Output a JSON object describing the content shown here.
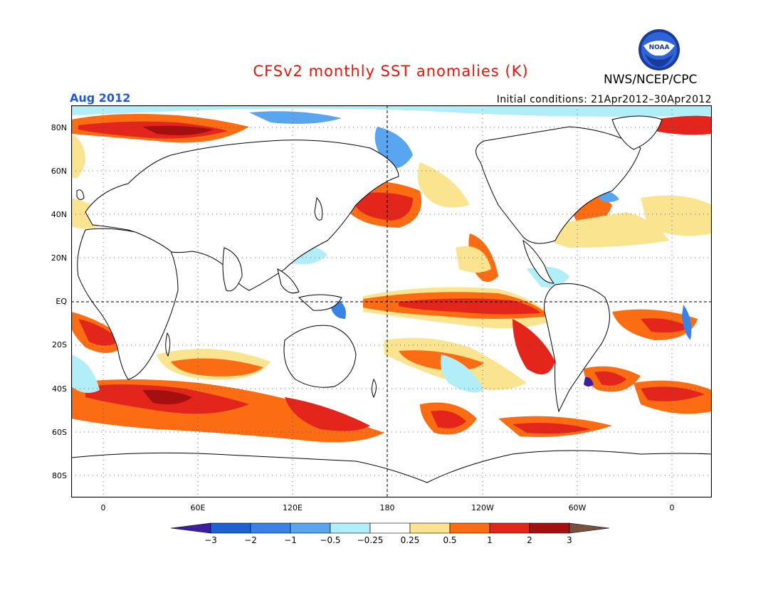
{
  "title": "CFSv2 monthly SST anomalies (K)",
  "agency": "NWS/NCEP/CPC",
  "logo_text": "NOAA",
  "valid_month": "Aug 2012",
  "initial_conditions": "Initial conditions: 21Apr2012–30Apr2012",
  "lat_labels": [
    "80N",
    "60N",
    "40N",
    "20N",
    "EQ",
    "20S",
    "40S",
    "60S",
    "80S"
  ],
  "lon_labels": [
    "0",
    "60E",
    "120E",
    "180",
    "120W",
    "60W",
    "0"
  ],
  "colorbar": {
    "labels": [
      "−3",
      "−2",
      "−1",
      "−0.5",
      "−0.25",
      "0.25",
      "0.5",
      "1",
      "2",
      "3"
    ],
    "colors": [
      "#3b1fa0",
      "#1c62d4",
      "#3a82e6",
      "#5aa5f0",
      "#b2eef8",
      "#ffffff",
      "#fbe490",
      "#fc6c12",
      "#e4251c",
      "#a50f0f",
      "#7a5040"
    ]
  },
  "colors": {
    "warm_strong": "#a50f0f",
    "warm": "#e4251c",
    "warm_mid": "#fc6c12",
    "warm_weak": "#fbe490",
    "cool_weak": "#b2eef8",
    "cool_mid": "#5aa5f0",
    "cool": "#3a82e6",
    "cool_strong": "#1c62d4",
    "title_red": "#e0180c",
    "valid_blue": "#1e5adc"
  }
}
